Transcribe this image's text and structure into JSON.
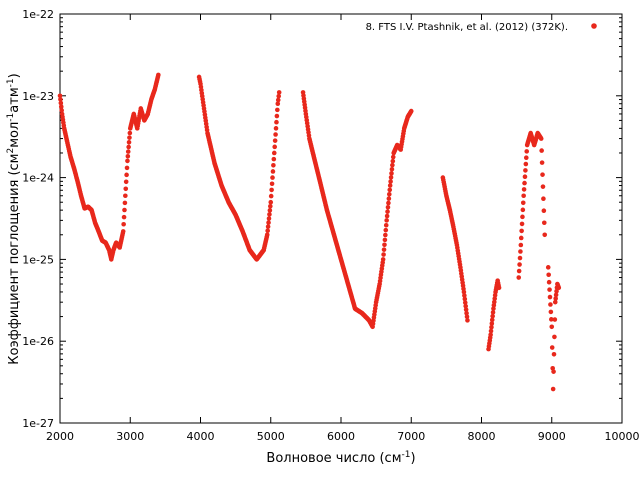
{
  "chart_data": {
    "type": "scatter",
    "xlabel": "Волновое число (см",
    "xlabel_sup": "-1",
    "xlabel_tail": ")",
    "ylabel": "Коэффициент поглощения (см",
    "ylabel_sup1": "2",
    "ylabel_mid": "мол",
    "ylabel_sup2": "-1",
    "ylabel_mid2": "атм",
    "ylabel_sup3": "-1",
    "ylabel_tail": ")",
    "xlim": [
      2000,
      10000
    ],
    "ylim": [
      1e-27,
      1e-22
    ],
    "yscale": "log",
    "x_ticks": [
      "2000",
      "3000",
      "4000",
      "5000",
      "6000",
      "7000",
      "8000",
      "9000",
      "10000"
    ],
    "y_ticks": [
      "1e-27",
      "1e-26",
      "1e-25",
      "1e-24",
      "1e-23",
      "1e-22"
    ],
    "legend_position": "top-right",
    "series": [
      {
        "name": "8. FTS I.V. Ptashnik, et al. (2012) (372K).",
        "color": "#e8281c",
        "segments": [
          [
            [
              2000,
              1e-23
            ],
            [
              2030,
              6e-24
            ],
            [
              2060,
              4e-24
            ],
            [
              2100,
              2.8e-24
            ],
            [
              2150,
              1.8e-24
            ],
            [
              2200,
              1.3e-24
            ],
            [
              2250,
              9e-25
            ],
            [
              2300,
              6e-25
            ],
            [
              2350,
              4.2e-25
            ],
            [
              2400,
              4.4e-25
            ],
            [
              2450,
              4e-25
            ],
            [
              2500,
              2.8e-25
            ],
            [
              2550,
              2.2e-25
            ],
            [
              2600,
              1.7e-25
            ],
            [
              2650,
              1.6e-25
            ],
            [
              2700,
              1.3e-25
            ],
            [
              2730,
              1e-25
            ],
            [
              2760,
              1.3e-25
            ],
            [
              2800,
              1.6e-25
            ],
            [
              2850,
              1.4e-25
            ],
            [
              2900,
              2.2e-25
            ],
            [
              2930,
              6e-25
            ],
            [
              2960,
              1.6e-24
            ],
            [
              3000,
              4e-24
            ],
            [
              3050,
              6e-24
            ],
            [
              3100,
              4e-24
            ],
            [
              3150,
              7e-24
            ],
            [
              3200,
              5e-24
            ],
            [
              3250,
              6e-24
            ],
            [
              3300,
              9e-24
            ],
            [
              3350,
              1.2e-23
            ],
            [
              3400,
              1.8e-23
            ]
          ],
          [
            [
              3980,
              1.7e-23
            ],
            [
              4000,
              1.4e-23
            ],
            [
              4050,
              7e-24
            ],
            [
              4100,
              3.5e-24
            ],
            [
              4200,
              1.5e-24
            ],
            [
              4300,
              8e-25
            ],
            [
              4400,
              5e-25
            ],
            [
              4500,
              3.5e-25
            ],
            [
              4600,
              2.2e-25
            ],
            [
              4700,
              1.3e-25
            ],
            [
              4800,
              1e-25
            ],
            [
              4900,
              1.3e-25
            ],
            [
              4950,
              2e-25
            ],
            [
              5000,
              5e-25
            ],
            [
              5050,
              2e-24
            ],
            [
              5100,
              8e-24
            ],
            [
              5120,
              1.1e-23
            ]
          ],
          [
            [
              5460,
              1.1e-23
            ],
            [
              5500,
              6e-24
            ],
            [
              5550,
              3e-24
            ],
            [
              5600,
              2e-24
            ],
            [
              5700,
              9e-25
            ],
            [
              5800,
              4e-25
            ],
            [
              5900,
              2e-25
            ],
            [
              6000,
              1e-25
            ],
            [
              6100,
              5e-26
            ],
            [
              6200,
              2.5e-26
            ],
            [
              6300,
              2.2e-26
            ],
            [
              6400,
              1.8e-26
            ],
            [
              6450,
              1.5e-26
            ],
            [
              6500,
              3e-26
            ],
            [
              6550,
              5e-26
            ],
            [
              6600,
              1e-25
            ],
            [
              6650,
              3e-25
            ],
            [
              6700,
              8e-25
            ],
            [
              6750,
              2e-24
            ],
            [
              6800,
              2.5e-24
            ],
            [
              6850,
              2.2e-24
            ],
            [
              6900,
              4e-24
            ],
            [
              6950,
              5.5e-24
            ],
            [
              7000,
              6.5e-24
            ]
          ],
          [
            [
              7450,
              1e-24
            ],
            [
              7500,
              6e-25
            ],
            [
              7550,
              4e-25
            ],
            [
              7600,
              2.5e-25
            ],
            [
              7650,
              1.5e-25
            ],
            [
              7700,
              8e-26
            ],
            [
              7750,
              4e-26
            ],
            [
              7800,
              1.8e-26
            ]
          ],
          [
            [
              8100,
              8e-27
            ],
            [
              8130,
              1.2e-26
            ],
            [
              8170,
              2.5e-26
            ],
            [
              8200,
              4e-26
            ],
            [
              8230,
              5.5e-26
            ],
            [
              8250,
              4.5e-26
            ]
          ],
          [
            [
              8530,
              6e-26
            ],
            [
              8560,
              1.5e-25
            ],
            [
              8600,
              6e-25
            ],
            [
              8650,
              2.5e-24
            ],
            [
              8700,
              3.5e-24
            ],
            [
              8750,
              2.5e-24
            ],
            [
              8800,
              3.5e-24
            ],
            [
              8850,
              3e-24
            ],
            [
              8900,
              2e-25
            ]
          ],
          [
            [
              8950,
              8e-26
            ],
            [
              9000,
              1.5e-26
            ],
            [
              9020,
              2.6e-27
            ],
            [
              9050,
              3e-26
            ],
            [
              9080,
              5e-26
            ],
            [
              9100,
              4.5e-26
            ]
          ]
        ]
      }
    ]
  }
}
